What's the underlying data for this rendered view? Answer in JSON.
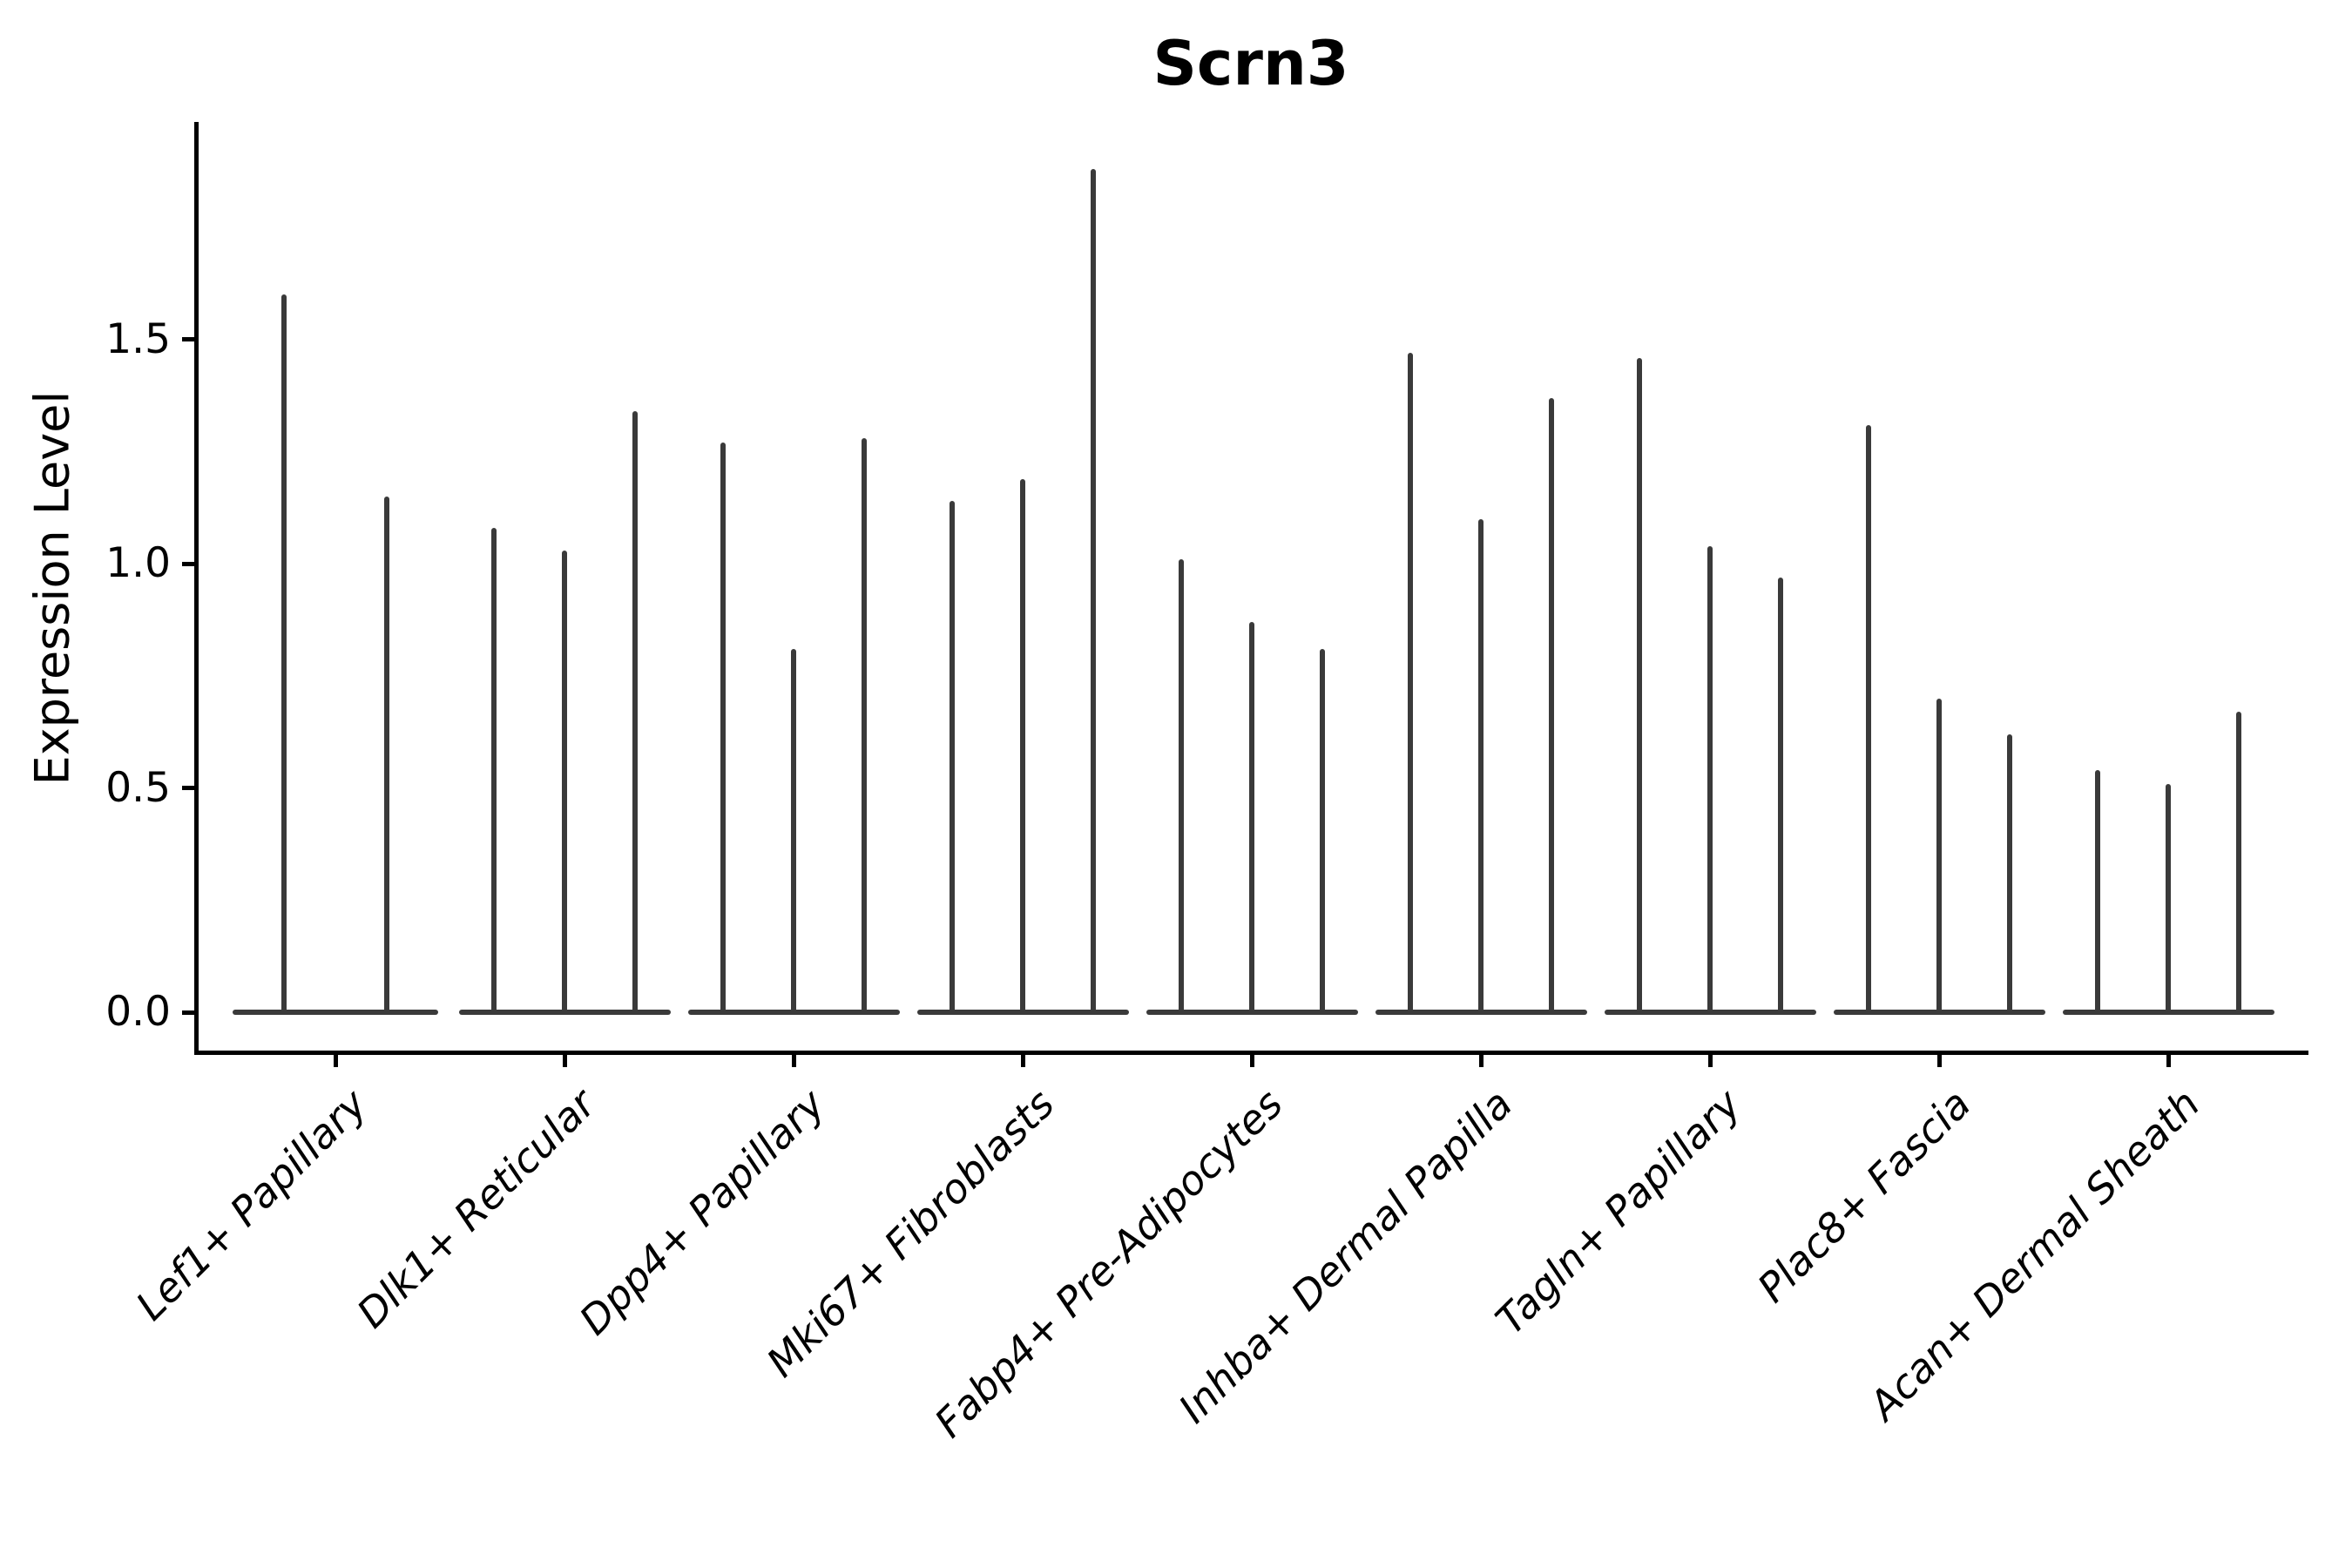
{
  "title": "Scrn3",
  "axes": {
    "ylabel": "Expression Level",
    "ytick_labels": [
      "0.0",
      "0.5",
      "1.0",
      "1.5"
    ]
  },
  "colors": {
    "background": "#ffffff",
    "violin": "#3a3a3a",
    "axis": "#000000",
    "text": "#000000"
  },
  "chart_data": {
    "type": "violin",
    "title": "Scrn3",
    "xlabel": "",
    "ylabel": "Expression Level",
    "ylim": [
      -0.09,
      1.99
    ],
    "yticks": [
      0.0,
      0.5,
      1.0,
      1.5
    ],
    "grid": false,
    "legend_position": "none",
    "categories": [
      "Lef1+ Papillary",
      "Dlk1+ Reticular",
      "Dpp4+ Papillary",
      "Mki67+ Fibroblasts",
      "Fabp4+ Pre-Adipocytes",
      "Inhba+ Dermal Papilla",
      "Tagln+ Papillary",
      "Plac8+ Fascia",
      "Acan+ Dermal Sheath"
    ],
    "series": [
      {
        "category": "Lef1+ Papillary",
        "violin_peak_values": [
          1.6,
          1.15
        ]
      },
      {
        "category": "Dlk1+ Reticular",
        "violin_peak_values": [
          1.08,
          1.03,
          1.34
        ]
      },
      {
        "category": "Dpp4+ Papillary",
        "violin_peak_values": [
          1.27,
          0.81,
          1.28
        ]
      },
      {
        "category": "Mki67+ Fibroblasts",
        "violin_peak_values": [
          1.14,
          1.19,
          1.88
        ]
      },
      {
        "category": "Fabp4+ Pre-Adipocytes",
        "violin_peak_values": [
          1.01,
          0.87,
          0.81
        ]
      },
      {
        "category": "Inhba+ Dermal Papilla",
        "violin_peak_values": [
          1.47,
          1.1,
          1.37
        ]
      },
      {
        "category": "Tagln+ Papillary",
        "violin_peak_values": [
          1.46,
          1.04,
          0.97
        ]
      },
      {
        "category": "Plac8+ Fascia",
        "violin_peak_values": [
          1.31,
          0.7,
          0.62
        ]
      },
      {
        "category": "Acan+ Dermal Sheath",
        "violin_peak_values": [
          0.54,
          0.51,
          0.67
        ]
      }
    ]
  }
}
